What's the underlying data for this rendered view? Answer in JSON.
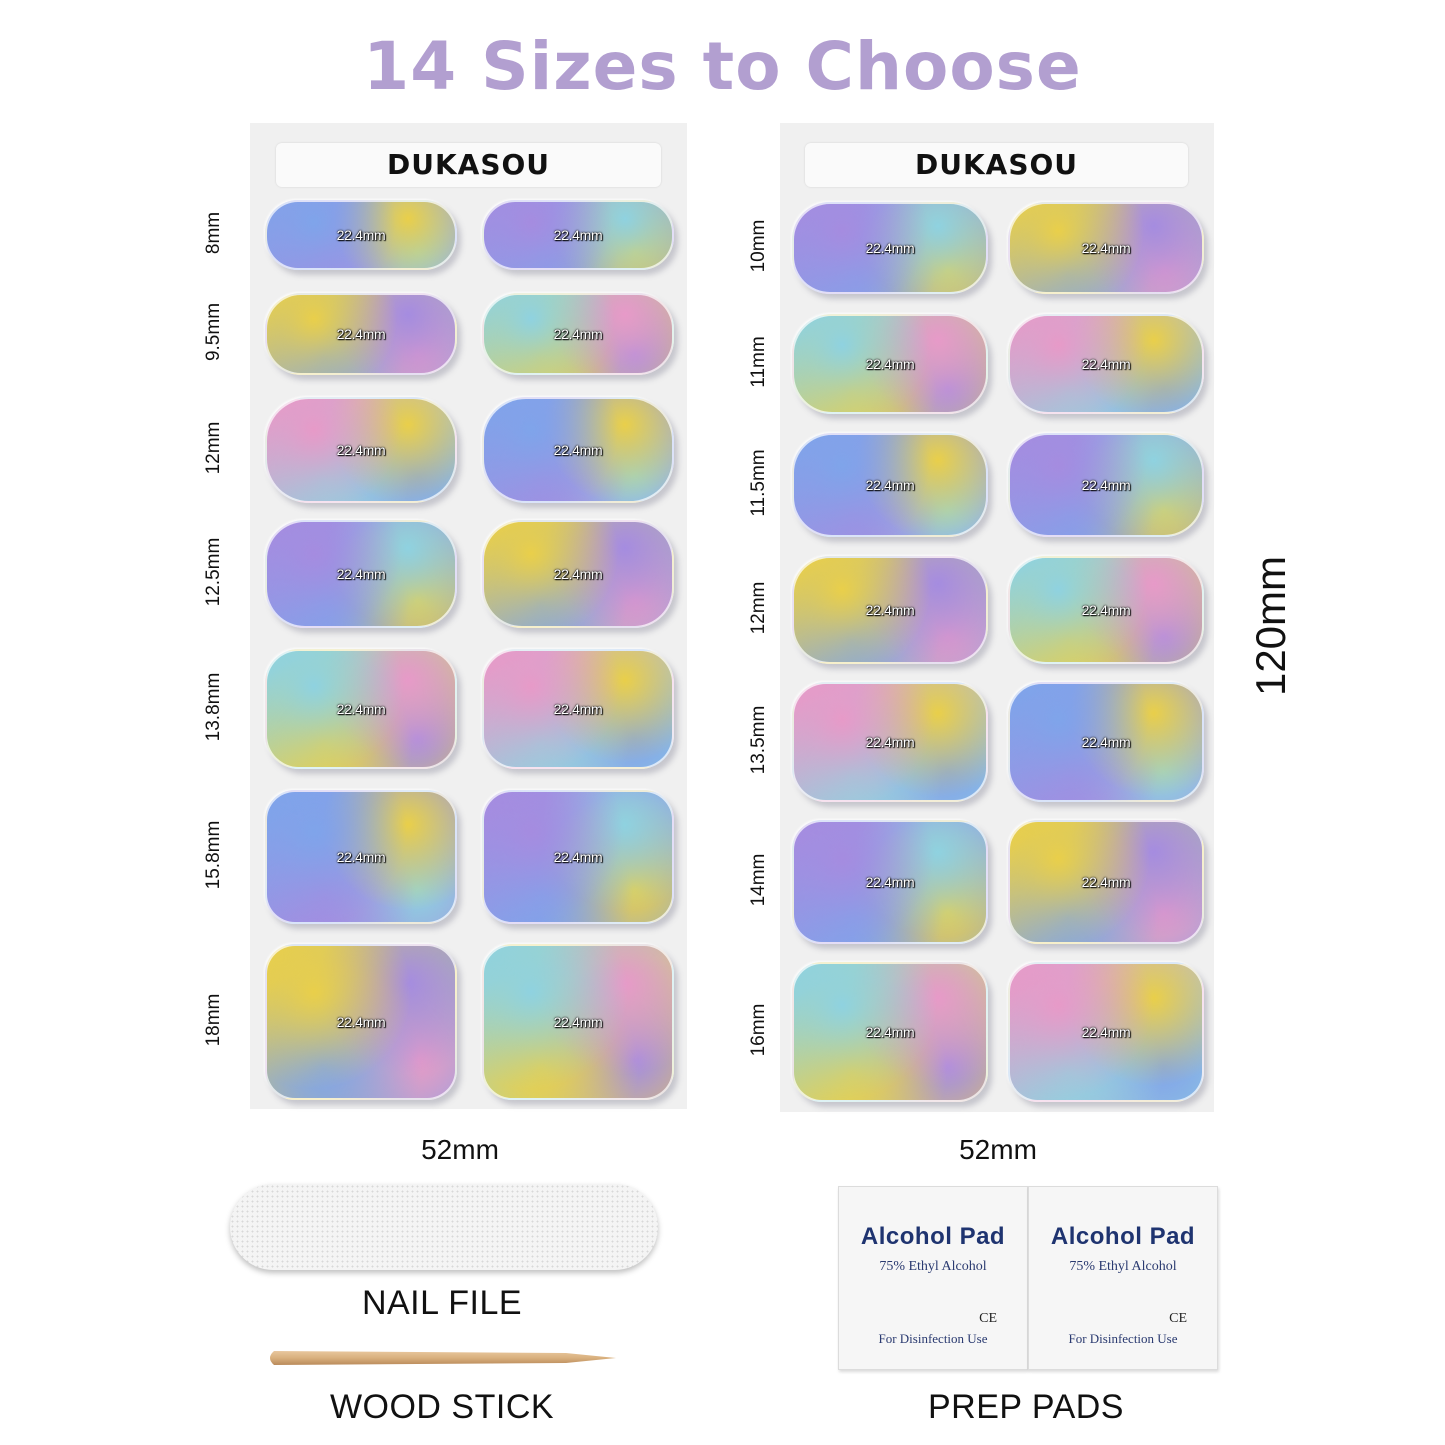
{
  "title": "14 Sizes to Choose",
  "brand": "DUKASOU",
  "nail_length": "22.4mm",
  "sheet_width_label": "52mm",
  "sheet_height_label": "120mm",
  "left_sheet": {
    "sizes": [
      "8mm",
      "9.5mm",
      "12mm",
      "12.5mm",
      "13.8mm",
      "15.8mm",
      "18mm"
    ]
  },
  "right_sheet": {
    "sizes": [
      "10mm",
      "11mm",
      "11.5mm",
      "12mm",
      "13.5mm",
      "14mm",
      "16mm"
    ]
  },
  "accessories": {
    "nail_file": "NAIL FILE",
    "wood_stick": "WOOD STICK",
    "prep_pads": "PREP PADS",
    "pad_title": "Alcohol Pad",
    "pad_subtitle": "75% Ethyl Alcohol",
    "pad_mark": "CE",
    "pad_footer": "For Disinfection Use"
  },
  "colors": {
    "title": "#b29fd0",
    "nail_purple": "#a58ce0",
    "nail_blue": "#7fa4ea",
    "nail_yellow": "#e9cf4a",
    "nail_pink": "#e79ac8",
    "nail_cyan": "#8fd2e0"
  }
}
